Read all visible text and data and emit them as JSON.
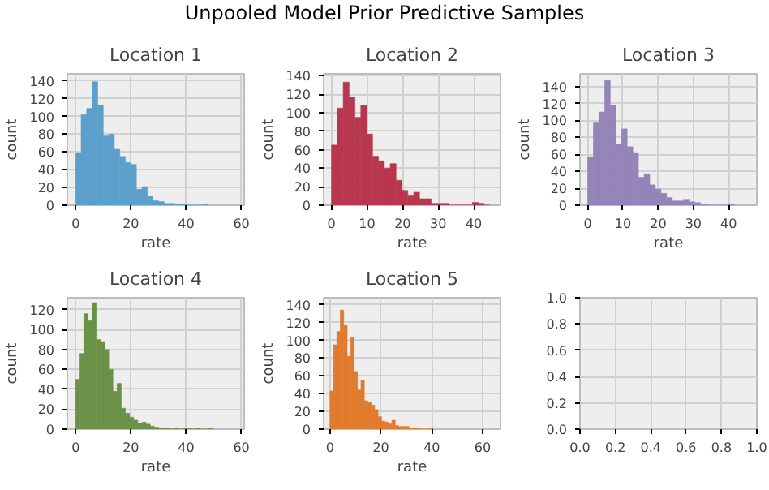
{
  "chart_data": [
    {
      "type": "histogram",
      "title": "Location 1",
      "xlabel": "rate",
      "ylabel": "count",
      "annotations": [
        "Unpooled Model Prior Predictive Samples"
      ],
      "color": "#5b9fcb",
      "grid": true,
      "bins": [
        0,
        2,
        4,
        6,
        8,
        10,
        12,
        14,
        16,
        18,
        20,
        22,
        24,
        26,
        28,
        30,
        32,
        34,
        36,
        38,
        40,
        42,
        44,
        46,
        48
      ],
      "values": [
        59,
        102,
        109,
        139,
        113,
        78,
        80,
        63,
        55,
        48,
        46,
        18,
        21,
        10,
        5,
        4,
        2,
        2,
        1,
        1,
        0,
        0,
        0,
        1
      ],
      "xlim": [
        -3,
        61
      ],
      "ylim": [
        0,
        148
      ],
      "xticks": [
        0,
        20,
        40,
        60
      ],
      "yticks": [
        0,
        20,
        40,
        60,
        80,
        100,
        120,
        140
      ]
    },
    {
      "type": "histogram",
      "title": "Location 2",
      "xlabel": "rate",
      "ylabel": "count",
      "color": "#b8374e",
      "grid": true,
      "bins": [
        0,
        1.65,
        3.3,
        4.95,
        6.6,
        8.25,
        9.9,
        11.55,
        13.2,
        14.85,
        16.5,
        18.15,
        19.8,
        21.45,
        23.1,
        24.75,
        26.4,
        28.05,
        29.7,
        31.35,
        33,
        34.65,
        36.3,
        37.95,
        39.6,
        41.25,
        42.9,
        44.55
      ],
      "values": [
        65,
        105,
        133,
        117,
        95,
        108,
        77,
        53,
        48,
        40,
        45,
        27,
        16,
        11,
        14,
        7,
        7,
        2,
        2,
        2,
        0,
        0,
        0,
        0,
        3,
        2,
        0
      ],
      "xlim": [
        -2.2,
        47.5
      ],
      "ylim": [
        0,
        142
      ],
      "xticks": [
        0,
        10,
        20,
        30,
        40
      ],
      "yticks": [
        0,
        20,
        40,
        60,
        80,
        100,
        120,
        140
      ]
    },
    {
      "type": "histogram",
      "title": "Location 3",
      "xlabel": "rate",
      "ylabel": "count",
      "color": "#9484b8",
      "grid": true,
      "bins": [
        0,
        1.6,
        3.2,
        4.8,
        6.4,
        8,
        9.6,
        11.2,
        12.8,
        14.4,
        16,
        17.6,
        19.2,
        20.8,
        22.4,
        24,
        25.6,
        27.2,
        28.8,
        30.4,
        32,
        33.6,
        35.2,
        36.8,
        38.4,
        40,
        41.6
      ],
      "values": [
        57,
        97,
        110,
        147,
        118,
        72,
        90,
        69,
        62,
        33,
        37,
        24,
        19,
        14,
        9,
        5,
        5,
        7,
        4,
        3,
        1,
        0,
        0,
        0,
        0,
        1
      ],
      "xlim": [
        -2.2,
        48
      ],
      "ylim": [
        0,
        155
      ],
      "xticks": [
        0,
        10,
        20,
        30,
        40
      ],
      "yticks": [
        0,
        20,
        40,
        60,
        80,
        100,
        120,
        140
      ]
    },
    {
      "type": "histogram",
      "title": "Location 4",
      "xlabel": "rate",
      "ylabel": "count",
      "color": "#6b9048",
      "grid": true,
      "bins": [
        0,
        1.5,
        3,
        4.5,
        6,
        7.5,
        9,
        10.5,
        12,
        13.5,
        15,
        16.5,
        18,
        19.5,
        21,
        22.5,
        24,
        25.5,
        27,
        28.5,
        30,
        31.5,
        33,
        34.5,
        36,
        37.5,
        39,
        40.5,
        42,
        43.5,
        45,
        46.5,
        48,
        49.5
      ],
      "values": [
        50,
        76,
        116,
        109,
        127,
        90,
        88,
        80,
        60,
        38,
        46,
        21,
        16,
        12,
        9,
        6,
        7,
        5,
        3,
        2,
        1,
        1,
        1,
        0,
        1,
        0,
        1,
        1,
        0,
        1,
        0,
        0,
        1
      ],
      "xlim": [
        -3,
        61
      ],
      "ylim": [
        0,
        132
      ],
      "xticks": [
        0,
        20,
        40,
        60
      ],
      "yticks": [
        0,
        20,
        40,
        60,
        80,
        100,
        120
      ]
    },
    {
      "type": "histogram",
      "title": "Location 5",
      "xlabel": "rate",
      "ylabel": "count",
      "color": "#e07b2e",
      "grid": true,
      "bins": [
        0,
        1.35,
        2.7,
        4.05,
        5.4,
        6.75,
        8.1,
        9.45,
        10.8,
        12.15,
        13.5,
        14.85,
        16.2,
        17.55,
        18.9,
        20.25,
        21.6,
        22.95,
        24.3,
        25.65,
        27,
        28.35,
        29.7,
        31.05,
        32.4,
        33.75,
        35.1,
        36.45,
        37.8,
        39.15,
        40.5
      ],
      "values": [
        43,
        95,
        110,
        134,
        117,
        82,
        103,
        65,
        44,
        55,
        32,
        30,
        27,
        22,
        14,
        9,
        8,
        6,
        10,
        4,
        3,
        3,
        3,
        1,
        1,
        1,
        0,
        0,
        0,
        1
      ],
      "xlim": [
        -2.5,
        67
      ],
      "ylim": [
        0,
        148
      ],
      "xticks": [
        0,
        20,
        40,
        60
      ],
      "yticks": [
        0,
        20,
        40,
        60,
        80,
        100,
        120,
        140
      ]
    },
    {
      "type": "scatter",
      "grid": true,
      "xlim": [
        0,
        1
      ],
      "ylim": [
        0,
        1
      ],
      "xticks": [
        {
          "value": 0,
          "label": "0.0"
        },
        0.2,
        0.4,
        0.6,
        0.8,
        {
          "value": 1,
          "label": "1.0"
        }
      ],
      "yticks": [
        {
          "value": 0,
          "label": "0.0"
        },
        0.2,
        0.4,
        0.6,
        0.8,
        {
          "value": 1,
          "label": "1.0"
        }
      ]
    }
  ]
}
